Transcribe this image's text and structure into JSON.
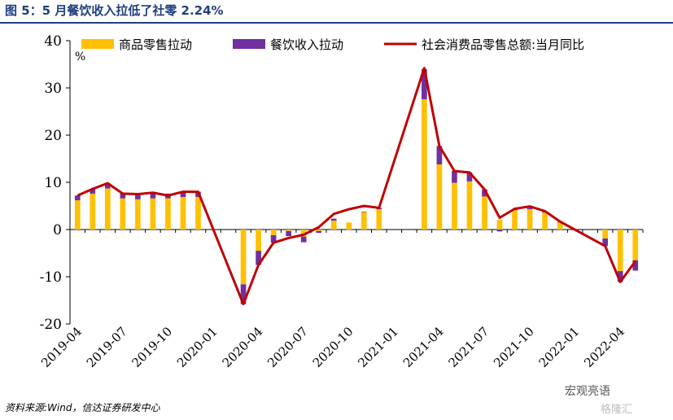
{
  "title": "图 5：5 月餐饮收入拉低了社零 2.24%",
  "source": "资料来源:Wind，信达证券研发中心",
  "watermark": "宏观亮语",
  "watermark2": "格隆汇",
  "colors": {
    "goods": "#FFC000",
    "catering": "#7030A0",
    "total": "#C00000",
    "title": "#1F3F7F"
  },
  "chart_data": {
    "type": "bar",
    "unit_label": "%",
    "ylim": [
      -20,
      40
    ],
    "yticks": [
      "40",
      "30",
      "20",
      "10",
      "0",
      "-10",
      "-20"
    ],
    "xtick_labels": [
      "2019-04",
      "2019-07",
      "2019-10",
      "2020-01",
      "2020-04",
      "2020-07",
      "2020-10",
      "2021-01",
      "2021-04",
      "2021-07",
      "2021-10",
      "2022-01",
      "2022-04"
    ],
    "x": [
      "2019-04",
      "2019-05",
      "2019-06",
      "2019-07",
      "2019-08",
      "2019-09",
      "2019-10",
      "2019-11",
      "2019-12",
      "2020-01",
      "2020-02",
      "2020-03",
      "2020-04",
      "2020-05",
      "2020-06",
      "2020-07",
      "2020-08",
      "2020-09",
      "2020-10",
      "2020-11",
      "2020-12",
      "2021-01",
      "2021-02",
      "2021-03",
      "2021-04",
      "2021-05",
      "2021-06",
      "2021-07",
      "2021-08",
      "2021-09",
      "2021-10",
      "2021-11",
      "2021-12",
      "2022-01",
      "2022-02",
      "2022-03",
      "2022-04",
      "2022-05"
    ],
    "legend": [
      "商品零售拉动",
      "餐饮收入拉动",
      "社会消费品零售总额:当月同比"
    ],
    "series": [
      {
        "name": "商品零售拉动",
        "type": "bar",
        "values": [
          6.2,
          7.6,
          8.7,
          6.6,
          6.4,
          6.6,
          6.6,
          6.9,
          6.9,
          null,
          null,
          -11.6,
          -4.5,
          -1.2,
          -0.3,
          -1.5,
          -0.3,
          1.9,
          1.5,
          3.7,
          4.3,
          null,
          null,
          27.6,
          13.8,
          9.9,
          10.2,
          7.0,
          2.1,
          4.1,
          4.3,
          3.6,
          1.6,
          null,
          null,
          -1.9,
          -8.8,
          -6.5
        ]
      },
      {
        "name": "餐饮收入拉动",
        "type": "bar",
        "values": [
          1.0,
          1.0,
          1.1,
          1.0,
          1.1,
          1.0,
          1.0,
          1.1,
          1.1,
          null,
          null,
          -4.2,
          -3.0,
          -1.6,
          -1.1,
          -1.2,
          -0.4,
          0.4,
          -0.1,
          0.1,
          0.3,
          null,
          null,
          6.4,
          3.9,
          2.5,
          1.9,
          1.5,
          -0.4,
          0.3,
          0.3,
          0.2,
          0.0,
          null,
          null,
          -1.6,
          -2.3,
          -2.2
        ]
      },
      {
        "name": "社会消费品零售总额:当月同比",
        "type": "line",
        "values": [
          7.2,
          8.6,
          9.8,
          7.6,
          7.5,
          7.8,
          7.2,
          8.0,
          8.0,
          null,
          null,
          -15.8,
          -7.5,
          -2.8,
          -1.8,
          -1.1,
          0.5,
          3.3,
          4.3,
          5.0,
          4.6,
          null,
          null,
          34.2,
          17.7,
          12.4,
          12.1,
          8.5,
          2.5,
          4.4,
          4.9,
          3.9,
          1.7,
          null,
          null,
          -3.5,
          -11.1,
          -6.7
        ]
      }
    ]
  }
}
